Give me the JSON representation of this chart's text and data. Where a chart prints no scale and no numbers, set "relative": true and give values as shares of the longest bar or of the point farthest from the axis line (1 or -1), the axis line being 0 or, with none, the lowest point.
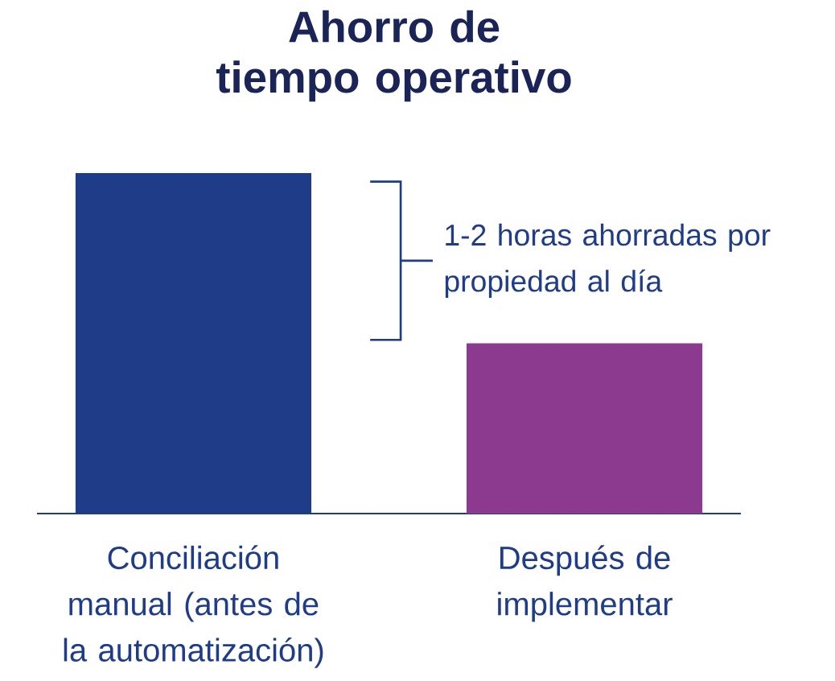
{
  "chart_data": {
    "type": "bar",
    "title": "Ahorro de tiempo operativo",
    "categories": [
      "Conciliación manual (antes de la automatización)",
      "Después de implementar"
    ],
    "values": [
      1,
      0.5
    ],
    "colors": [
      "#1f3c88",
      "#8b3a8f"
    ],
    "relative": true,
    "annotations": [
      "1-2 horas ahorradas por propiedad al día"
    ]
  }
}
